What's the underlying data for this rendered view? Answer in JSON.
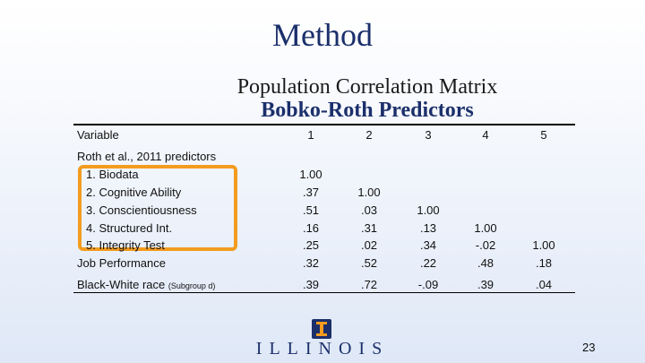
{
  "slide": {
    "title": "Method",
    "subtitle_line1": "Population Correlation Matrix",
    "subtitle_line2": "Bobko-Roth Predictors",
    "page_number": "23",
    "logo_text": "ILLINOIS"
  },
  "table": {
    "column_headers": [
      "Variable",
      "1",
      "2",
      "3",
      "4",
      "5"
    ],
    "group_label": "Roth et al., 2011 predictors",
    "rows": [
      {
        "label": "1. Biodata",
        "values": [
          "1.00",
          "",
          "",
          "",
          ""
        ]
      },
      {
        "label": "2. Cognitive Ability",
        "values": [
          ".37",
          "1.00",
          "",
          "",
          ""
        ]
      },
      {
        "label": "3. Conscientiousness",
        "values": [
          ".51",
          ".03",
          "1.00",
          "",
          ""
        ]
      },
      {
        "label": "4. Structured Int.",
        "values": [
          ".16",
          ".31",
          ".13",
          "1.00",
          ""
        ]
      },
      {
        "label": "5. Integrity Test",
        "values": [
          ".25",
          ".02",
          ".34",
          "-.02",
          "1.00"
        ]
      },
      {
        "label": "Job Performance",
        "values": [
          ".32",
          ".52",
          ".22",
          ".48",
          ".18"
        ]
      },
      {
        "label": "Black-White race",
        "label_note": "(Subgroup d)",
        "values": [
          ".39",
          ".72",
          "-.09",
          ".39",
          ".04"
        ]
      }
    ]
  }
}
